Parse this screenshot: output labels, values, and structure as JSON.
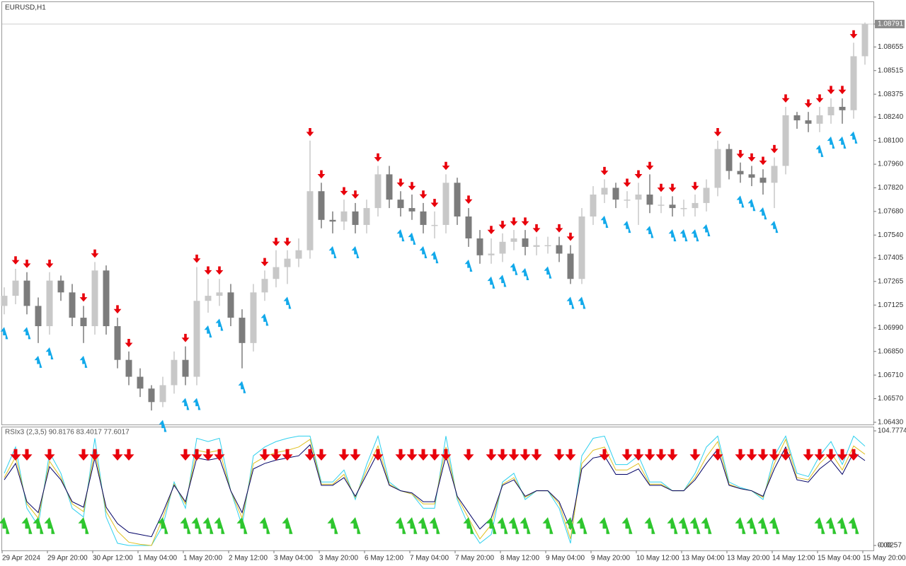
{
  "chart_data": [
    {
      "type": "candlestick",
      "title": "EURUSD,H1",
      "categories": [
        "29 Apr 2024",
        null,
        null,
        null,
        "29 Apr 20:00",
        null,
        null,
        null,
        "30 Apr 12:00",
        null,
        null,
        null,
        "1 May 04:00",
        null,
        null,
        null,
        "1 May 20:00",
        null,
        null,
        null,
        "2 May 12:00",
        null,
        null,
        null,
        "3 May 04:00",
        null,
        null,
        null,
        "3 May 20:00",
        null,
        null,
        null,
        "6 May 12:00",
        null,
        null,
        null,
        "7 May 04:00",
        null,
        null,
        null,
        "7 May 20:00",
        null,
        null,
        null,
        "8 May 12:00",
        null,
        null,
        null,
        "9 May 04:00",
        null,
        null,
        null,
        "9 May 20:00",
        null,
        null,
        null,
        "10 May 12:00",
        null,
        null,
        null,
        "13 May 04:00",
        null,
        null,
        null,
        "13 May 20:00",
        null,
        null,
        null,
        "14 May 12:00",
        null,
        null,
        null,
        "15 May 04:00",
        null,
        null,
        null,
        "15 May 20:00"
      ],
      "open": [
        1.0712,
        1.0718,
        1.0727,
        1.0712,
        1.07,
        1.0727,
        1.072,
        1.0705,
        1.07,
        1.0733,
        1.07,
        1.068,
        1.067,
        1.0663,
        1.0655,
        1.0665,
        1.068,
        1.067,
        1.0715,
        1.0718,
        1.072,
        1.0705,
        1.069,
        1.072,
        1.0728,
        1.0735,
        1.074,
        1.0745,
        1.078,
        1.0763,
        1.0762,
        1.0768,
        1.076,
        1.077,
        1.079,
        1.0775,
        1.077,
        1.0768,
        1.076,
        1.076,
        1.0785,
        1.0765,
        1.0752,
        1.0742,
        1.0743,
        1.075,
        1.0752,
        1.0747,
        1.0748,
        1.0748,
        1.0743,
        1.0728,
        1.0765,
        1.0778,
        1.0782,
        1.0775,
        1.0775,
        1.0778,
        1.0772,
        1.0772,
        1.077,
        1.077,
        1.0773,
        1.0782,
        1.0805,
        1.0792,
        1.079,
        1.0788,
        1.0785,
        1.0795,
        1.0825,
        1.0822,
        1.082,
        1.0825,
        1.083,
        1.0828,
        1.086
      ],
      "high": [
        1.0723,
        1.0734,
        1.0732,
        1.0717,
        1.0732,
        1.073,
        1.0725,
        1.0712,
        1.0738,
        1.0736,
        1.0705,
        1.0685,
        1.0675,
        1.0665,
        1.067,
        1.0685,
        1.0688,
        1.0735,
        1.0728,
        1.0728,
        1.0725,
        1.071,
        1.0725,
        1.0733,
        1.0745,
        1.0745,
        1.0752,
        1.081,
        1.0785,
        1.0768,
        1.0775,
        1.0773,
        1.0775,
        1.0795,
        1.0795,
        1.078,
        1.0778,
        1.0773,
        1.0768,
        1.079,
        1.0788,
        1.077,
        1.0757,
        1.0752,
        1.0755,
        1.0757,
        1.0757,
        1.0753,
        1.0753,
        1.0753,
        1.0748,
        1.077,
        1.0783,
        1.0787,
        1.0785,
        1.078,
        1.0785,
        1.079,
        1.0777,
        1.0777,
        1.0775,
        1.0778,
        1.0787,
        1.081,
        1.0808,
        1.0797,
        1.0795,
        1.0793,
        1.08,
        1.083,
        1.0827,
        1.0827,
        1.083,
        1.0835,
        1.0835,
        1.0868,
        1.088
      ],
      "low": [
        1.0707,
        1.0713,
        1.0707,
        1.069,
        1.0695,
        1.0715,
        1.07,
        1.069,
        1.0695,
        1.0695,
        1.0675,
        1.0665,
        1.0658,
        1.065,
        1.0652,
        1.066,
        1.0665,
        1.0665,
        1.0708,
        1.0712,
        1.07,
        1.0675,
        1.0685,
        1.0715,
        1.0723,
        1.0725,
        1.0735,
        1.074,
        1.0758,
        1.0755,
        1.0757,
        1.0755,
        1.0755,
        1.0765,
        1.077,
        1.0765,
        1.0763,
        1.0755,
        1.0752,
        1.0755,
        1.076,
        1.0747,
        1.0737,
        1.0737,
        1.0738,
        1.0745,
        1.0742,
        1.0742,
        1.0743,
        1.0738,
        1.0725,
        1.0725,
        1.076,
        1.0773,
        1.077,
        1.077,
        1.076,
        1.0767,
        1.0767,
        1.0765,
        1.0765,
        1.0765,
        1.0768,
        1.0777,
        1.0787,
        1.0785,
        1.0783,
        1.0778,
        1.077,
        1.079,
        1.0817,
        1.0815,
        1.0815,
        1.082,
        1.082,
        1.0823,
        1.0855
      ],
      "close": [
        1.0718,
        1.0727,
        1.0712,
        1.07,
        1.0727,
        1.072,
        1.0705,
        1.07,
        1.0733,
        1.07,
        1.068,
        1.067,
        1.0663,
        1.0655,
        1.0665,
        1.068,
        1.067,
        1.0715,
        1.0718,
        1.072,
        1.0705,
        1.069,
        1.072,
        1.0728,
        1.0735,
        1.074,
        1.0745,
        1.078,
        1.0763,
        1.0762,
        1.0768,
        1.076,
        1.077,
        1.079,
        1.0775,
        1.077,
        1.0768,
        1.076,
        1.076,
        1.0785,
        1.0765,
        1.0752,
        1.0742,
        1.0743,
        1.075,
        1.0752,
        1.0747,
        1.0748,
        1.0748,
        1.0743,
        1.0728,
        1.0765,
        1.0778,
        1.0782,
        1.0775,
        1.0775,
        1.0778,
        1.0772,
        1.0772,
        1.077,
        1.077,
        1.0773,
        1.0782,
        1.0805,
        1.0792,
        1.079,
        1.0788,
        1.0785,
        1.0795,
        1.0825,
        1.0822,
        1.082,
        1.0825,
        1.083,
        1.0828,
        1.086,
        1.0879
      ],
      "bull_color": "#c8c8c8",
      "bear_color": "#7c7c7c",
      "sell_signals": [
        1,
        2,
        4,
        7,
        8,
        10,
        11,
        16,
        17,
        18,
        19,
        23,
        24,
        25,
        27,
        28,
        30,
        31,
        33,
        35,
        36,
        37,
        38,
        39,
        41,
        43,
        44,
        45,
        46,
        47,
        49,
        50,
        53,
        55,
        56,
        57,
        58,
        59,
        61,
        63,
        65,
        66,
        67,
        68,
        69,
        71,
        72,
        73,
        74,
        75
      ],
      "buy_signals": [
        0,
        2,
        3,
        4,
        7,
        14,
        16,
        17,
        18,
        19,
        21,
        23,
        25,
        29,
        31,
        35,
        36,
        37,
        38,
        41,
        43,
        44,
        45,
        46,
        48,
        50,
        51,
        53,
        55,
        57,
        59,
        60,
        61,
        62,
        65,
        66,
        67,
        68,
        72,
        73,
        74,
        75
      ],
      "sell_color": "#e8000b",
      "buy_color": "#12a9ea",
      "ylim": [
        1.06417,
        1.08925
      ],
      "yticks": [
        1.08791,
        1.08655,
        1.08515,
        1.08375,
        {
          "value": 1.0824,
          "label": "1.08240"
        },
        {
          "value": 1.081,
          "label": "1.08100"
        },
        {
          "value": 1.0796,
          "label": "1.07960"
        },
        {
          "value": 1.0782,
          "label": "1.07820"
        },
        {
          "value": 1.0768,
          "label": "1.07680"
        },
        {
          "value": 1.0754,
          "label": "1.07540"
        },
        1.07405,
        1.07265,
        1.07125,
        {
          "value": 1.0699,
          "label": "1.06990"
        },
        {
          "value": 1.0685,
          "label": "1.06850"
        },
        {
          "value": 1.0671,
          "label": "1.06710"
        },
        {
          "value": 1.0657,
          "label": "1.06570"
        },
        {
          "value": 1.0643,
          "label": "1.06430"
        }
      ]
    },
    {
      "type": "line",
      "title": "RSIx3 (2,3,5) 90.8176 83.4017 77.6017",
      "series": [
        {
          "color": "#2fd0ee",
          "values": [
            66,
            90,
            34,
            18,
            85,
            66,
            34,
            26,
            98,
            26,
            2,
            0,
            0,
            0,
            18,
            58,
            34,
            98,
            95,
            98,
            50,
            18,
            82,
            90,
            95,
            98,
            100,
            100,
            58,
            58,
            69,
            42,
            74,
            100,
            58,
            50,
            47,
            34,
            34,
            100,
            42,
            18,
            2,
            10,
            58,
            66,
            42,
            50,
            50,
            34,
            2,
            82,
            98,
            100,
            74,
            74,
            82,
            58,
            58,
            50,
            50,
            66,
            90,
            100,
            58,
            53,
            50,
            42,
            82,
            100,
            66,
            63,
            82,
            95,
            74,
            100,
            90.8176
          ]
        },
        {
          "color": "#e0c020",
          "values": [
            62,
            81,
            38,
            25,
            77,
            62,
            38,
            31,
            87,
            31,
            13,
            3,
            1,
            0,
            25,
            56,
            38,
            87,
            85,
            87,
            50,
            25,
            75,
            81,
            85,
            87,
            90,
            97,
            56,
            56,
            65,
            44,
            69,
            91,
            56,
            50,
            47,
            38,
            38,
            90,
            44,
            25,
            6,
            19,
            56,
            62,
            44,
            50,
            50,
            38,
            6,
            75,
            87,
            90,
            69,
            69,
            75,
            56,
            56,
            50,
            50,
            62,
            81,
            95,
            56,
            52,
            50,
            44,
            75,
            97,
            62,
            60,
            75,
            85,
            69,
            91,
            83.4017
          ]
        },
        {
          "color": "#000066",
          "values": [
            60,
            75,
            40,
            30,
            72,
            60,
            40,
            35,
            80,
            35,
            20,
            12,
            10,
            8,
            30,
            55,
            40,
            80,
            78,
            80,
            50,
            30,
            70,
            75,
            78,
            80,
            82,
            92,
            55,
            55,
            62,
            45,
            65,
            85,
            55,
            50,
            48,
            40,
            40,
            82,
            45,
            30,
            15,
            25,
            55,
            60,
            45,
            50,
            50,
            40,
            15,
            70,
            80,
            82,
            65,
            65,
            70,
            55,
            55,
            50,
            50,
            60,
            75,
            88,
            55,
            52,
            50,
            45,
            70,
            90,
            60,
            58,
            70,
            78,
            65,
            85,
            77.6017
          ]
        }
      ],
      "sell_color": "#e8000b",
      "buy_color": "#2ec62e",
      "ylim": [
        -4.55,
        108.66
      ],
      "yticks": [
        104.7774,
        {
          "value": 0,
          "label": "0.00"
        },
        -0.0257
      ]
    }
  ]
}
